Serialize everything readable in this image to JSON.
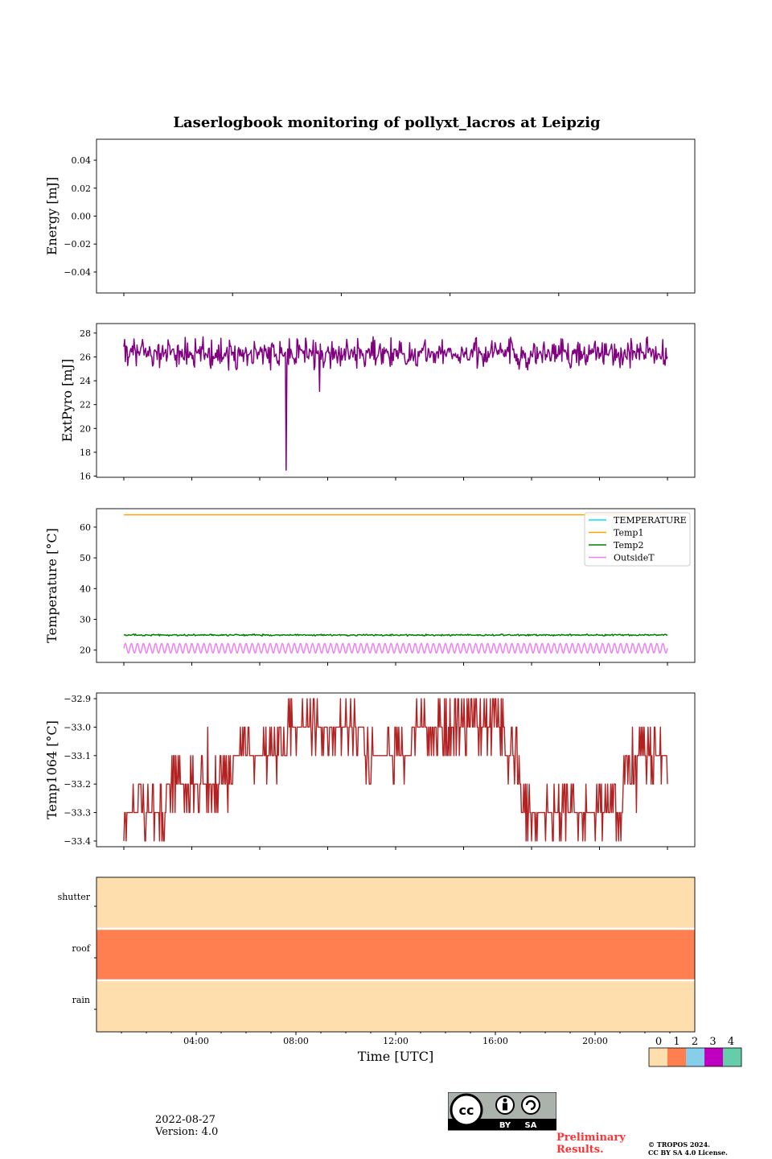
{
  "title": "Laserlogbook monitoring of pollyxt_lacros at Leipzig",
  "footer": {
    "date": "2022-08-27",
    "version": "Version: 4.0",
    "preliminary": [
      "Preliminary",
      "Results."
    ],
    "copyright": [
      "© TROPOS 2024.",
      "CC BY SA 4.0 License."
    ],
    "license_badge": {
      "by": "BY",
      "sa": "SA"
    }
  },
  "chart_data": [
    {
      "type": "line",
      "ylabel": "Energy [mJ]",
      "ylim": [
        -0.055,
        0.055
      ],
      "yticks": [
        "0.04",
        "0.02",
        "0.00",
        "−0.02",
        "−0.04"
      ],
      "ytick_values": [
        0.04,
        0.02,
        0,
        -0.02,
        -0.04
      ],
      "series": []
    },
    {
      "type": "line",
      "ylabel": "ExtPyro [mJ]",
      "ylim": [
        15.9,
        28.8
      ],
      "yticks": [
        "28",
        "26",
        "24",
        "22",
        "20",
        "18",
        "16"
      ],
      "ytick_values": [
        28,
        26,
        24,
        22,
        20,
        18,
        16
      ],
      "series": [
        {
          "color": "#800080",
          "base": 26.3,
          "noise": 0.9,
          "range": [
            24.4,
            28.4
          ],
          "spikes": [
            {
              "x": 0.298,
              "y": 16.5
            },
            {
              "x": 0.36,
              "y": 23.1
            }
          ]
        }
      ]
    },
    {
      "type": "line",
      "ylabel": "Temperature [°C]",
      "ylim": [
        16,
        66
      ],
      "yticks": [
        "60",
        "50",
        "40",
        "30",
        "20"
      ],
      "ytick_values": [
        60,
        50,
        40,
        30,
        20
      ],
      "legend": "top-right",
      "series": [
        {
          "name": "TEMPERATURE",
          "color": "#00e5ee",
          "values": []
        },
        {
          "name": "Temp1",
          "color": "#ffa500",
          "constant": 64
        },
        {
          "name": "Temp2",
          "color": "#008000",
          "base": 24.9,
          "noise": 0.2
        },
        {
          "name": "OutsideT",
          "color": "#ee82ee",
          "base": 20.6,
          "amplitude": 1.6
        }
      ]
    },
    {
      "type": "line",
      "ylabel": "Temp1064 [°C]",
      "ylim": [
        -33.42,
        -32.88
      ],
      "yticks": [
        "−32.9",
        "−33.0",
        "−33.1",
        "−33.2",
        "−33.3",
        "−33.4"
      ],
      "ytick_values": [
        -32.9,
        -33.0,
        -33.1,
        -33.2,
        -33.3,
        -33.4
      ],
      "series": [
        {
          "color": "#b22222",
          "levels": [
            {
              "x": [
                0.0,
                0.08
              ],
              "y": -33.3
            },
            {
              "x": [
                0.08,
                0.2
              ],
              "y": -33.2
            },
            {
              "x": [
                0.2,
                0.3
              ],
              "y": -33.1
            },
            {
              "x": [
                0.3,
                0.44
              ],
              "y": -33.0
            },
            {
              "x": [
                0.44,
                0.53
              ],
              "y": -33.1
            },
            {
              "x": [
                0.53,
                0.7
              ],
              "y": -33.0
            },
            {
              "x": [
                0.7,
                0.73
              ],
              "y": -33.1
            },
            {
              "x": [
                0.73,
                0.92
              ],
              "y": -33.3
            },
            {
              "x": [
                0.92,
                1.0
              ],
              "y": -33.1
            }
          ]
        }
      ]
    },
    {
      "type": "heatmap",
      "rows": [
        "shutter",
        "roof",
        "rain"
      ],
      "row_values": [
        0,
        1,
        0
      ],
      "xlabel": "Time [UTC]",
      "xticks": [
        "04:00",
        "08:00",
        "12:00",
        "16:00",
        "20:00"
      ],
      "xtick_hours": [
        4,
        8,
        12,
        16,
        20
      ],
      "x_range_hours": [
        0,
        24
      ],
      "colorbar": {
        "labels": [
          "0",
          "1",
          "2",
          "3",
          "4"
        ],
        "colors": [
          "#ffdead",
          "#ff7f50",
          "#87ceeb",
          "#c000c0",
          "#66cdaa"
        ]
      }
    }
  ]
}
